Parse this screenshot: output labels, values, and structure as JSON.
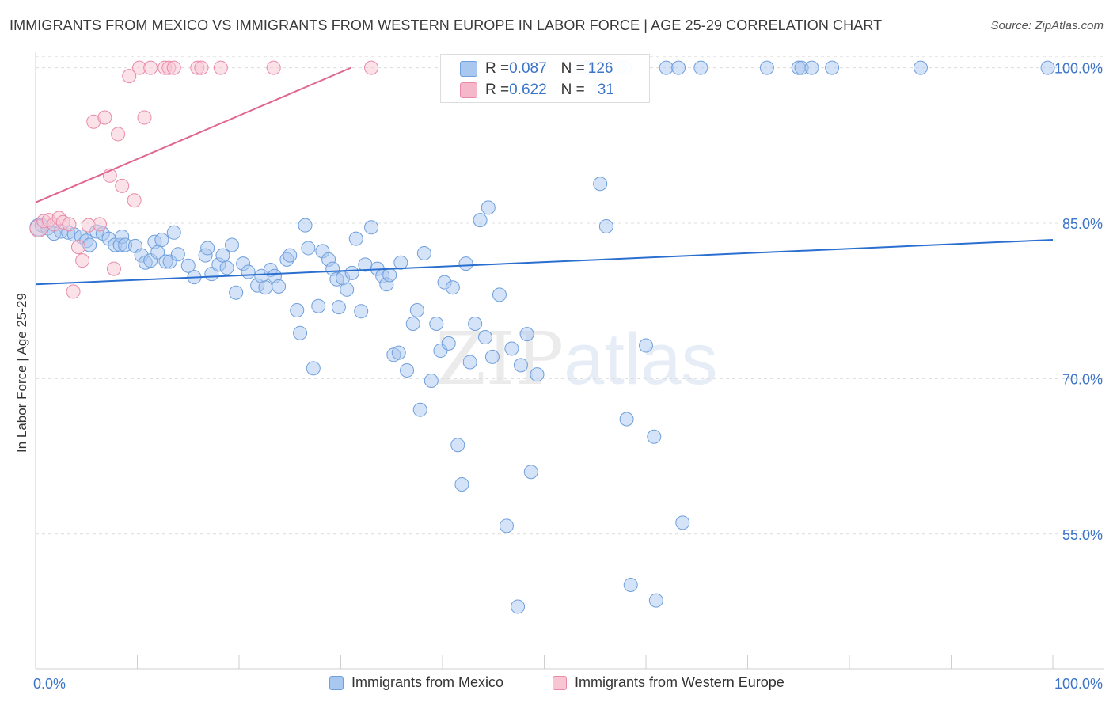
{
  "title": "IMMIGRANTS FROM MEXICO VS IMMIGRANTS FROM WESTERN EUROPE IN LABOR FORCE | AGE 25-29 CORRELATION CHART",
  "source": "Source: ZipAtlas.com",
  "watermark": {
    "zip": "ZIP",
    "atlas": "atlas"
  },
  "stats": [
    {
      "r_label": "R = ",
      "r_value": "0.087",
      "n_label": "N = ",
      "n_value": "126",
      "color": "#a9c8f0"
    },
    {
      "r_label": "R = ",
      "r_value": "0.622",
      "n_label": "N = ",
      "n_value": "31",
      "color": "#f5b8cb"
    }
  ],
  "legend": [
    {
      "label": "Immigrants from Mexico",
      "color": "#a9c8f0",
      "border": "#6f9fdc"
    },
    {
      "label": "Immigrants from Western Europe",
      "color": "#f8c6d3",
      "border": "#e98aa8"
    }
  ],
  "chart_data": {
    "type": "scatter",
    "title": "IMMIGRANTS FROM MEXICO VS IMMIGRANTS FROM WESTERN EUROPE IN LABOR FORCE | AGE 25-29 CORRELATION CHART",
    "xlabel": "",
    "ylabel": "In Labor Force | Age 25-29",
    "xlim": [
      0,
      100
    ],
    "ylim": [
      42,
      101.5
    ],
    "x_tick_labels": [
      {
        "value": 0,
        "label": "0.0%"
      },
      {
        "value": 100,
        "label": "100.0%"
      }
    ],
    "y_ticks": [
      {
        "value": 55,
        "label": "55.0%"
      },
      {
        "value": 70,
        "label": "70.0%"
      },
      {
        "value": 85,
        "label": "85.0%"
      },
      {
        "value": 100,
        "label": "100.0%"
      }
    ],
    "grid": "horizontal dashed",
    "series": [
      {
        "name": "Immigrants from Mexico",
        "color": "#6f9fdc",
        "fill": "rgba(169,200,240,0.5)",
        "trend": {
          "x": [
            0,
            100
          ],
          "y": [
            79.1,
            83.4
          ],
          "color": "#2a6fcf"
        },
        "points": [
          [
            0.3,
            84.6
          ],
          [
            0.6,
            84.8
          ],
          [
            1.2,
            84.5
          ],
          [
            1.8,
            84.0
          ],
          [
            2.5,
            84.2
          ],
          [
            3.2,
            84.1
          ],
          [
            3.8,
            83.9
          ],
          [
            4.5,
            83.7
          ],
          [
            5.0,
            83.3
          ],
          [
            5.3,
            82.9
          ],
          [
            6.0,
            84.2
          ],
          [
            6.6,
            84.0
          ],
          [
            7.2,
            83.5
          ],
          [
            7.8,
            82.9
          ],
          [
            8.3,
            82.9
          ],
          [
            8.5,
            83.7
          ],
          [
            8.8,
            82.9
          ],
          [
            9.8,
            82.8
          ],
          [
            10.4,
            81.9
          ],
          [
            10.8,
            81.2
          ],
          [
            11.3,
            81.4
          ],
          [
            11.7,
            83.2
          ],
          [
            12.0,
            82.2
          ],
          [
            12.4,
            83.4
          ],
          [
            12.8,
            81.3
          ],
          [
            13.2,
            81.3
          ],
          [
            13.6,
            84.1
          ],
          [
            14.0,
            82.0
          ],
          [
            15.0,
            80.9
          ],
          [
            15.6,
            79.8
          ],
          [
            16.7,
            81.9
          ],
          [
            16.9,
            82.6
          ],
          [
            17.3,
            80.1
          ],
          [
            18.0,
            81.0
          ],
          [
            18.4,
            81.9
          ],
          [
            18.8,
            80.7
          ],
          [
            19.3,
            82.9
          ],
          [
            19.7,
            78.3
          ],
          [
            20.4,
            81.1
          ],
          [
            20.9,
            80.3
          ],
          [
            21.8,
            79.0
          ],
          [
            22.2,
            79.9
          ],
          [
            22.6,
            78.8
          ],
          [
            23.1,
            80.5
          ],
          [
            23.5,
            79.9
          ],
          [
            23.9,
            78.9
          ],
          [
            24.7,
            81.5
          ],
          [
            25.0,
            81.9
          ],
          [
            25.7,
            76.6
          ],
          [
            26.0,
            74.4
          ],
          [
            26.5,
            84.8
          ],
          [
            26.8,
            82.6
          ],
          [
            27.3,
            71.0
          ],
          [
            27.8,
            77.0
          ],
          [
            28.2,
            82.3
          ],
          [
            28.8,
            81.5
          ],
          [
            29.2,
            80.6
          ],
          [
            29.6,
            79.6
          ],
          [
            29.8,
            76.9
          ],
          [
            30.2,
            79.7
          ],
          [
            30.6,
            78.6
          ],
          [
            31.1,
            80.2
          ],
          [
            31.5,
            83.5
          ],
          [
            32.0,
            76.5
          ],
          [
            32.4,
            81.0
          ],
          [
            33.0,
            84.6
          ],
          [
            33.6,
            80.6
          ],
          [
            34.1,
            79.9
          ],
          [
            34.5,
            79.1
          ],
          [
            34.8,
            80.0
          ],
          [
            35.2,
            72.3
          ],
          [
            35.7,
            72.5
          ],
          [
            35.9,
            81.2
          ],
          [
            36.5,
            70.8
          ],
          [
            37.1,
            75.3
          ],
          [
            37.5,
            76.6
          ],
          [
            37.8,
            67.0
          ],
          [
            38.2,
            82.1
          ],
          [
            38.9,
            69.8
          ],
          [
            39.4,
            75.3
          ],
          [
            39.8,
            72.7
          ],
          [
            40.2,
            79.3
          ],
          [
            40.6,
            73.4
          ],
          [
            41.0,
            78.8
          ],
          [
            41.5,
            63.6
          ],
          [
            41.9,
            59.8
          ],
          [
            42.3,
            81.1
          ],
          [
            42.7,
            71.6
          ],
          [
            43.2,
            75.3
          ],
          [
            43.7,
            85.3
          ],
          [
            44.2,
            74.0
          ],
          [
            44.5,
            86.5
          ],
          [
            44.9,
            72.1
          ],
          [
            45.6,
            78.1
          ],
          [
            46.3,
            55.8
          ],
          [
            46.8,
            72.9
          ],
          [
            47.4,
            48.0
          ],
          [
            47.7,
            71.3
          ],
          [
            48.3,
            74.3
          ],
          [
            48.7,
            61.0
          ],
          [
            49.3,
            70.4
          ],
          [
            53.2,
            100.0
          ],
          [
            54.0,
            100.0
          ],
          [
            54.4,
            100.0
          ],
          [
            55.5,
            88.8
          ],
          [
            56.1,
            84.7
          ],
          [
            57.3,
            100.0
          ],
          [
            57.9,
            100.0
          ],
          [
            58.1,
            66.1
          ],
          [
            58.5,
            50.1
          ],
          [
            60.0,
            73.2
          ],
          [
            60.8,
            64.4
          ],
          [
            61.0,
            48.6
          ],
          [
            62.0,
            100.0
          ],
          [
            63.2,
            100.0
          ],
          [
            63.6,
            56.1
          ],
          [
            65.4,
            100.0
          ],
          [
            71.9,
            100.0
          ],
          [
            75.0,
            100.0
          ],
          [
            75.3,
            100.0
          ],
          [
            76.3,
            100.0
          ],
          [
            78.3,
            100.0
          ],
          [
            87.0,
            100.0
          ],
          [
            99.5,
            100.0
          ]
        ]
      },
      {
        "name": "Immigrants from Western Europe",
        "color": "#e98aa8",
        "fill": "rgba(248,198,211,0.5)",
        "trend": {
          "x": [
            0,
            31
          ],
          "y": [
            87.0,
            100.0
          ],
          "color": "#e0668f"
        },
        "points": [
          [
            0.3,
            84.5
          ],
          [
            0.8,
            85.2
          ],
          [
            1.3,
            85.3
          ],
          [
            1.8,
            84.9
          ],
          [
            2.3,
            85.5
          ],
          [
            2.7,
            85.1
          ],
          [
            3.3,
            84.9
          ],
          [
            3.7,
            78.4
          ],
          [
            4.2,
            82.7
          ],
          [
            4.6,
            81.4
          ],
          [
            5.2,
            84.8
          ],
          [
            5.7,
            94.8
          ],
          [
            6.3,
            84.9
          ],
          [
            6.8,
            95.2
          ],
          [
            7.3,
            89.6
          ],
          [
            7.7,
            80.6
          ],
          [
            8.1,
            93.6
          ],
          [
            8.5,
            88.6
          ],
          [
            9.2,
            99.2
          ],
          [
            9.7,
            87.2
          ],
          [
            10.2,
            100.0
          ],
          [
            10.7,
            95.2
          ],
          [
            11.3,
            100.0
          ],
          [
            12.7,
            100.0
          ],
          [
            13.1,
            100.0
          ],
          [
            13.6,
            100.0
          ],
          [
            15.9,
            100.0
          ],
          [
            16.3,
            100.0
          ],
          [
            18.2,
            100.0
          ],
          [
            23.4,
            100.0
          ],
          [
            33.0,
            100.0
          ]
        ]
      }
    ]
  }
}
